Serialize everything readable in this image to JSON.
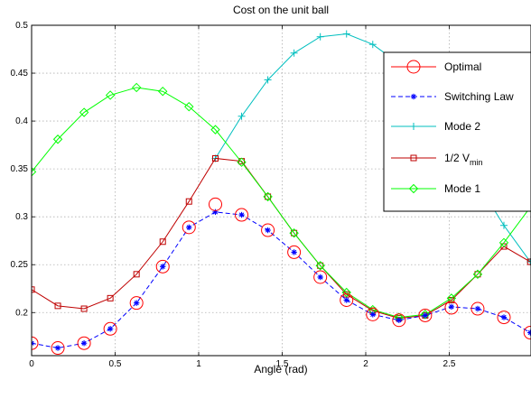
{
  "chart_data": {
    "type": "line",
    "title": "Cost on the unit ball",
    "xlabel": "Angle (rad)",
    "ylabel": "",
    "xlim": [
      0,
      3.0
    ],
    "ylim": [
      0.155,
      0.5
    ],
    "xticks": [
      "0",
      "0.5",
      "1",
      "1.5",
      "2",
      "2.5"
    ],
    "yticks": [
      "0.2",
      "0.25",
      "0.3",
      "0.35",
      "0.4",
      "0.45",
      "0.5"
    ],
    "grid": true,
    "legend_position": "top-right",
    "series": [
      {
        "name": "Optimal",
        "color": "#ff0000",
        "marker": "circle",
        "line": "none",
        "x": [
          0,
          0.157,
          0.314,
          0.471,
          0.628,
          0.785,
          0.942,
          1.1,
          1.257,
          1.414,
          1.571,
          1.728,
          1.885,
          2.042,
          2.199,
          2.356,
          2.513,
          2.67,
          2.827,
          2.985
        ],
        "y": [
          0.168,
          0.163,
          0.168,
          0.183,
          0.21,
          0.248,
          0.289,
          0.313,
          0.302,
          0.286,
          0.263,
          0.237,
          0.213,
          0.198,
          0.192,
          0.197,
          0.205,
          0.204,
          0.195,
          0.179
        ]
      },
      {
        "name": "Switching Law",
        "color": "#0000ff",
        "marker": "star",
        "line": "dashed",
        "x": [
          0,
          0.157,
          0.314,
          0.471,
          0.628,
          0.785,
          0.942,
          1.1,
          1.257,
          1.414,
          1.571,
          1.728,
          1.885,
          2.042,
          2.199,
          2.356,
          2.513,
          2.67,
          2.827,
          2.985
        ],
        "y": [
          0.168,
          0.163,
          0.168,
          0.183,
          0.21,
          0.248,
          0.289,
          0.305,
          0.302,
          0.286,
          0.263,
          0.237,
          0.213,
          0.198,
          0.192,
          0.197,
          0.206,
          0.204,
          0.195,
          0.179
        ]
      },
      {
        "name": "Mode 2",
        "color": "#00bfbf",
        "marker": "plus",
        "line": "solid",
        "x": [
          1.1,
          1.257,
          1.414,
          1.571,
          1.728,
          1.885,
          2.042,
          2.199,
          2.356,
          2.513,
          2.67,
          2.827,
          2.985
        ],
        "y": [
          0.361,
          0.405,
          0.443,
          0.471,
          0.488,
          0.491,
          0.48,
          0.46,
          0.43,
          0.38,
          0.335,
          0.291,
          0.253
        ]
      },
      {
        "name": "1/2 V",
        "name_sub": "min",
        "color": "#bf0000",
        "marker": "square",
        "line": "solid",
        "x": [
          0,
          0.157,
          0.314,
          0.471,
          0.628,
          0.785,
          0.942,
          1.1,
          1.257,
          1.414,
          1.571,
          1.728,
          1.885,
          2.042,
          2.199,
          2.356,
          2.513,
          2.67,
          2.827,
          2.985
        ],
        "y": [
          0.224,
          0.207,
          0.204,
          0.215,
          0.24,
          0.274,
          0.316,
          0.361,
          0.358,
          0.321,
          0.283,
          0.249,
          0.219,
          0.202,
          0.194,
          0.197,
          0.213,
          0.24,
          0.269,
          0.253
        ]
      },
      {
        "name": "Mode 1",
        "color": "#00ff00",
        "marker": "diamond",
        "line": "solid",
        "x": [
          0,
          0.157,
          0.314,
          0.471,
          0.628,
          0.785,
          0.942,
          1.1,
          1.257,
          1.414,
          1.571,
          1.728,
          1.885,
          2.042,
          2.199,
          2.356,
          2.513,
          2.67,
          2.827,
          2.985
        ],
        "y": [
          0.347,
          0.381,
          0.409,
          0.427,
          0.435,
          0.431,
          0.415,
          0.391,
          0.357,
          0.321,
          0.283,
          0.249,
          0.221,
          0.203,
          0.195,
          0.198,
          0.215,
          0.24,
          0.273,
          0.31
        ]
      }
    ]
  }
}
